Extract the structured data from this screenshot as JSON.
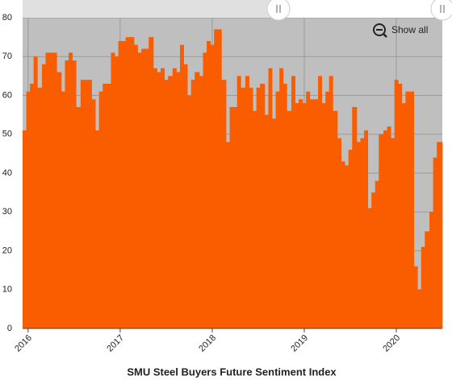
{
  "chart_data": {
    "type": "step-area",
    "title": "SMU Steel Buyers Future Sentiment Index",
    "color": "#fa5c00",
    "grid": true,
    "x": [
      2015.94,
      2015.98,
      2016.02,
      2016.06,
      2016.1,
      2016.15,
      2016.19,
      2016.23,
      2016.27,
      2016.31,
      2016.36,
      2016.4,
      2016.44,
      2016.48,
      2016.52,
      2016.57,
      2016.61,
      2016.65,
      2016.69,
      2016.73,
      2016.77,
      2016.81,
      2016.86,
      2016.9,
      2016.94,
      2016.98,
      2017.02,
      2017.06,
      2017.1,
      2017.15,
      2017.19,
      2017.23,
      2017.27,
      2017.31,
      2017.36,
      2017.4,
      2017.44,
      2017.48,
      2017.52,
      2017.57,
      2017.61,
      2017.65,
      2017.69,
      2017.73,
      2017.77,
      2017.81,
      2017.86,
      2017.9,
      2017.94,
      2017.98,
      2018.02,
      2018.06,
      2018.1,
      2018.15,
      2018.19,
      2018.23,
      2018.27,
      2018.31,
      2018.36,
      2018.4,
      2018.44,
      2018.48,
      2018.52,
      2018.57,
      2018.61,
      2018.65,
      2018.69,
      2018.73,
      2018.77,
      2018.81,
      2018.86,
      2018.9,
      2018.94,
      2018.98,
      2019.02,
      2019.06,
      2019.1,
      2019.15,
      2019.19,
      2019.23,
      2019.27,
      2019.31,
      2019.36,
      2019.4,
      2019.44,
      2019.48,
      2019.52,
      2019.57,
      2019.61,
      2019.65,
      2019.69,
      2019.73,
      2019.77,
      2019.81,
      2019.86,
      2019.9,
      2019.94,
      2019.98,
      2020.02,
      2020.06,
      2020.1,
      2020.15,
      2020.19,
      2020.23,
      2020.27,
      2020.31,
      2020.36,
      2020.4,
      2020.44
    ],
    "values": [
      51,
      61,
      63,
      70,
      62,
      68,
      71,
      71,
      71,
      66,
      61,
      69,
      71,
      69,
      57,
      64,
      64,
      64,
      59,
      51,
      61,
      63,
      63,
      71,
      70,
      74,
      74,
      75,
      75,
      73,
      71,
      72,
      72,
      75,
      67,
      66,
      67,
      64,
      65,
      67,
      66,
      73,
      68,
      60,
      64,
      66,
      65,
      71,
      74,
      73,
      77,
      77,
      64,
      48,
      57,
      57,
      65,
      62,
      65,
      62,
      56,
      62,
      63,
      55,
      67,
      54,
      61,
      67,
      63,
      56,
      65,
      58,
      59,
      58,
      61,
      59,
      59,
      65,
      58,
      61,
      65,
      56,
      49,
      43,
      42,
      46,
      57,
      48,
      49,
      51,
      31,
      35,
      38,
      50,
      51,
      52,
      49,
      64,
      63,
      58,
      61,
      61,
      16,
      10,
      21,
      25,
      30,
      44,
      48
    ],
    "xlim": [
      2015.94,
      2020.5
    ],
    "xticks": [
      2016,
      2017,
      2018,
      2019,
      2020
    ],
    "ylim": [
      0,
      80
    ],
    "yticks": [
      0,
      10,
      20,
      30,
      40,
      50,
      60,
      70,
      80
    ]
  },
  "controls": {
    "show_all": "Show all"
  }
}
